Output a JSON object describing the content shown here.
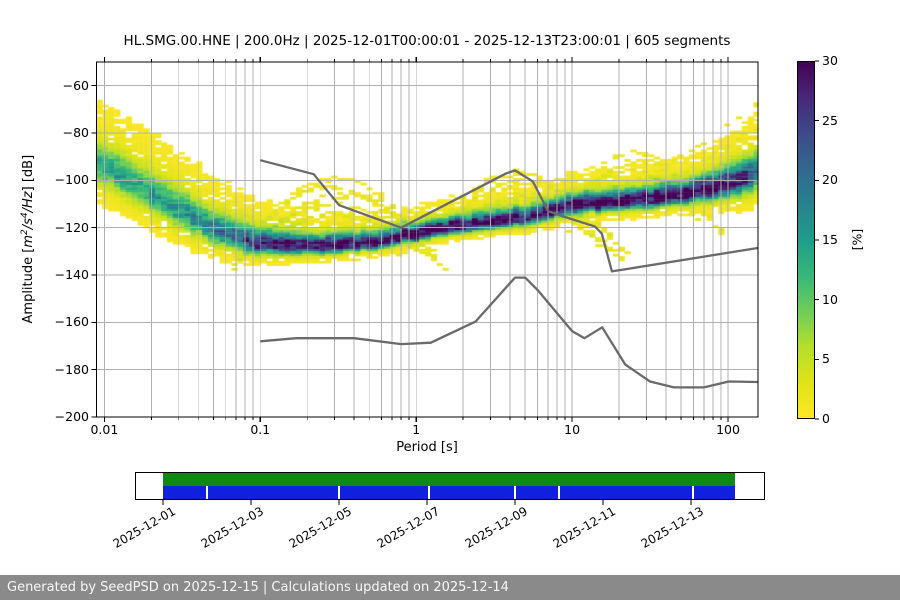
{
  "chart_data": {
    "type": "heatmap",
    "title": "HL.SMG.00.HNE | 200.0Hz | 2025-12-01T00:00:01 - 2025-12-13T23:00:01 | 605 segments",
    "xlabel": "Period [s]",
    "ylabel": "Amplitude [m²/s⁴/Hz] [dB]",
    "ylabel_segments": [
      {
        "t": "Amplitude [",
        "s": "plain"
      },
      {
        "t": "m",
        "s": "italic"
      },
      {
        "t": "2",
        "s": "sup"
      },
      {
        "t": "/s",
        "s": "italic"
      },
      {
        "t": "4",
        "s": "sup"
      },
      {
        "t": "/Hz",
        "s": "italic"
      },
      {
        "t": "] [dB]",
        "s": "plain"
      }
    ],
    "xlim": [
      0.0089,
      155.7
    ],
    "ylim": [
      -200,
      -50
    ],
    "xscale": "log",
    "xticks": [
      {
        "v": 0.01,
        "label": "0.01"
      },
      {
        "v": 0.1,
        "label": "0.1"
      },
      {
        "v": 1,
        "label": "1"
      },
      {
        "v": 10,
        "label": "10"
      },
      {
        "v": 100,
        "label": "100"
      }
    ],
    "yticks": [
      {
        "v": -60,
        "label": "−60"
      },
      {
        "v": -80,
        "label": "−80"
      },
      {
        "v": -100,
        "label": "−100"
      },
      {
        "v": -120,
        "label": "−120"
      },
      {
        "v": -140,
        "label": "−140"
      },
      {
        "v": -160,
        "label": "−160"
      },
      {
        "v": -180,
        "label": "−180"
      },
      {
        "v": -200,
        "label": "−200"
      }
    ],
    "grid_color": "#b0b0b0",
    "colorbar": {
      "label": "[%]",
      "min": 0,
      "max": 30,
      "ticks": [
        0,
        5,
        10,
        15,
        20,
        25,
        30
      ],
      "cmap": "viridis_r"
    },
    "viridis_stops": [
      [
        0.0,
        "#440154"
      ],
      [
        0.1,
        "#482878"
      ],
      [
        0.2,
        "#3e4989"
      ],
      [
        0.3,
        "#31688e"
      ],
      [
        0.4,
        "#26828e"
      ],
      [
        0.5,
        "#1f9e89"
      ],
      [
        0.6,
        "#35b779"
      ],
      [
        0.7,
        "#6ece58"
      ],
      [
        0.8,
        "#b5de2b"
      ],
      [
        0.9,
        "#dfe318"
      ],
      [
        1.0,
        "#fde725"
      ]
    ],
    "density": {
      "cell_octaves": 0.125,
      "cell_db": 1,
      "ridge": [
        [
          0.0089,
          -93.5
        ],
        [
          0.013,
          -99
        ],
        [
          0.02,
          -106
        ],
        [
          0.03,
          -113
        ],
        [
          0.05,
          -121
        ],
        [
          0.08,
          -126
        ],
        [
          0.1,
          -127.5
        ],
        [
          0.15,
          -128.3
        ],
        [
          0.25,
          -128.5
        ],
        [
          0.5,
          -127
        ],
        [
          0.8,
          -124.5
        ],
        [
          1.2,
          -121.8
        ],
        [
          2,
          -119.8
        ],
        [
          3.3,
          -118
        ],
        [
          6,
          -115.5
        ],
        [
          10,
          -111.5
        ],
        [
          15,
          -110.3
        ],
        [
          20,
          -109.8
        ],
        [
          40,
          -107.5
        ],
        [
          80,
          -104
        ],
        [
          120,
          -100.5
        ],
        [
          158,
          -97
        ]
      ],
      "peak_percent": [
        [
          0.0089,
          12
        ],
        [
          0.02,
          13
        ],
        [
          0.04,
          15
        ],
        [
          0.06,
          18
        ],
        [
          0.09,
          22
        ],
        [
          0.13,
          26
        ],
        [
          0.2,
          29
        ],
        [
          0.5,
          30
        ],
        [
          6,
          30
        ],
        [
          60,
          30
        ],
        [
          100,
          28
        ],
        [
          130,
          24
        ],
        [
          158,
          16
        ]
      ],
      "sigma_up": [
        [
          0.0089,
          6
        ],
        [
          0.03,
          5.5
        ],
        [
          0.08,
          4.5
        ],
        [
          0.2,
          3.2
        ],
        [
          1,
          2.6
        ],
        [
          5,
          3
        ],
        [
          20,
          3.2
        ],
        [
          60,
          3.5
        ],
        [
          158,
          5.5
        ]
      ],
      "sigma_down": [
        [
          0.0089,
          5
        ],
        [
          0.03,
          4.5
        ],
        [
          0.08,
          3
        ],
        [
          0.15,
          2.2
        ],
        [
          0.5,
          1.8
        ],
        [
          2,
          1.8
        ],
        [
          10,
          2
        ],
        [
          60,
          2.5
        ],
        [
          158,
          4.5
        ]
      ],
      "halo": {
        "up_amp": 2.1,
        "up_mult": 2.7,
        "down_amp": 1.9,
        "down_mult": 2.0
      },
      "arc_depth_db": 10,
      "arcs": [
        {
          "pc": 0.3,
          "top": -100,
          "w": 1.1,
          "amp": 1.1
        },
        {
          "pc": 0.27,
          "top": -103.5,
          "w": 1.2,
          "amp": 1.2
        },
        {
          "pc": 0.33,
          "top": -107,
          "w": 1.3,
          "amp": 1.4
        },
        {
          "pc": 0.3,
          "top": -111,
          "w": 1.4,
          "amp": 1.6
        },
        {
          "pc": 0.3,
          "top": -115,
          "w": 1.5,
          "amp": 1.8
        },
        {
          "pc": 4.2,
          "top": -97.5,
          "w": 1.0,
          "amp": 1.1
        },
        {
          "pc": 4.8,
          "top": -101,
          "w": 1.2,
          "amp": 1.2
        },
        {
          "pc": 3.6,
          "top": -104.5,
          "w": 1.3,
          "amp": 1.4
        },
        {
          "pc": 4.5,
          "top": -108,
          "w": 1.5,
          "amp": 1.5
        },
        {
          "pc": 3.8,
          "top": -111.5,
          "w": 1.6,
          "amp": 1.7
        },
        {
          "pc": 24,
          "top": -88,
          "w": 0.8,
          "amp": 1.1
        },
        {
          "pc": 26,
          "top": -92,
          "w": 0.9,
          "amp": 1.2
        },
        {
          "pc": 22,
          "top": -96,
          "w": 1.0,
          "amp": 1.3
        },
        {
          "pc": 28,
          "top": -100,
          "w": 1.1,
          "amp": 1.4
        }
      ],
      "diagonals": [
        {
          "p0": 27,
          "db0": -102,
          "p1": 152,
          "db1": -68,
          "amp": 1.4
        },
        {
          "p0": 40,
          "db0": -101,
          "p1": 152,
          "db1": -78,
          "amp": 1.2
        }
      ]
    },
    "noise_models": {
      "color": "#6a6a6a",
      "width": 2.3,
      "high": [
        [
          0.1,
          -91.5
        ],
        [
          0.22,
          -97.4
        ],
        [
          0.32,
          -110.5
        ],
        [
          0.8,
          -120
        ],
        [
          3.8,
          -97
        ],
        [
          4.3,
          -95.8
        ],
        [
          5.6,
          -100.5
        ],
        [
          7,
          -113
        ],
        [
          9,
          -115.5
        ],
        [
          14,
          -119.5
        ],
        [
          15.5,
          -122.5
        ],
        [
          18,
          -138.5
        ],
        [
          155,
          -128.6
        ]
      ],
      "low": [
        [
          0.1,
          -168
        ],
        [
          0.17,
          -166.7
        ],
        [
          0.4,
          -166.7
        ],
        [
          0.8,
          -169.2
        ],
        [
          1.24,
          -168.6
        ],
        [
          2.4,
          -159.7
        ],
        [
          4.3,
          -141.1
        ],
        [
          5,
          -141.1
        ],
        [
          6,
          -146.3
        ],
        [
          10,
          -163.7
        ],
        [
          12,
          -166.7
        ],
        [
          15.6,
          -162.1
        ],
        [
          21.9,
          -177.8
        ],
        [
          31.6,
          -185
        ],
        [
          45,
          -187.5
        ],
        [
          70,
          -187.5
        ],
        [
          101,
          -185
        ],
        [
          155,
          -185.2
        ]
      ]
    },
    "timeline": {
      "span_days": 13,
      "coverage_color": "#128712",
      "segments_color": "#1021dd",
      "gap_positions_days": [
        1.0,
        4.0,
        6.05,
        8.0,
        9.0,
        12.05
      ],
      "ticks": [
        {
          "day": 0,
          "label": "2025-12-01"
        },
        {
          "day": 2,
          "label": "2025-12-03"
        },
        {
          "day": 4,
          "label": "2025-12-05"
        },
        {
          "day": 6,
          "label": "2025-12-07"
        },
        {
          "day": 8,
          "label": "2025-12-09"
        },
        {
          "day": 10,
          "label": "2025-12-11"
        },
        {
          "day": 12,
          "label": "2025-12-13"
        }
      ]
    }
  },
  "footer": {
    "text": "Generated by SeedPSD on 2025-12-15 | Calculations updated on 2025-12-14",
    "bg": "#8a8a8a",
    "fg": "#f8f8f8"
  }
}
